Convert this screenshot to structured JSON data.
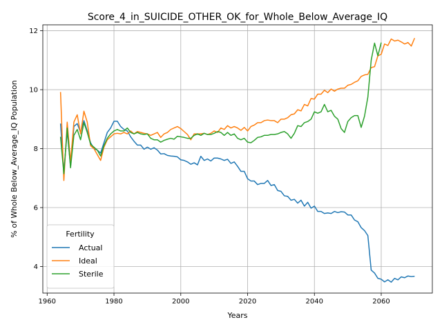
{
  "chart_data": {
    "type": "line",
    "title": "Score_4_in_SUICIDE_OTHER_OK_for_Whole_Below_Average_IQ",
    "xlabel": "Years",
    "ylabel": "% of Whole Below_Average_IQ Population",
    "xlim": [
      1958.7,
      2075.3
    ],
    "ylim": [
      3.1,
      12.2
    ],
    "xticks": [
      1960,
      1980,
      2000,
      2020,
      2040,
      2060
    ],
    "yticks": [
      4,
      6,
      8,
      10,
      12
    ],
    "grid": true,
    "legend": {
      "title": "Fertility",
      "placement": "lower-left"
    },
    "series": [
      {
        "name": "Actual",
        "color": "#1f77b4",
        "points": [
          [
            1964,
            8.85
          ],
          [
            1965,
            7.2
          ],
          [
            1966,
            8.6
          ],
          [
            1967,
            7.4
          ],
          [
            1968,
            8.75
          ],
          [
            1969,
            8.85
          ],
          [
            1970,
            8.55
          ],
          [
            1971,
            8.95
          ],
          [
            1972,
            8.6
          ],
          [
            1973,
            8.2
          ],
          [
            1974,
            8.0
          ],
          [
            1975,
            7.95
          ],
          [
            1976,
            7.85
          ],
          [
            1977,
            8.2
          ],
          [
            1978,
            8.55
          ],
          [
            1979,
            8.7
          ],
          [
            1980,
            8.93
          ],
          [
            1981,
            8.93
          ],
          [
            1982,
            8.75
          ],
          [
            1983,
            8.65
          ],
          [
            1984,
            8.6
          ],
          [
            1985,
            8.4
          ],
          [
            1986,
            8.25
          ],
          [
            1987,
            8.12
          ],
          [
            1988,
            8.12
          ],
          [
            1989,
            7.98
          ],
          [
            1990,
            8.05
          ],
          [
            1991,
            7.98
          ],
          [
            1992,
            8.03
          ],
          [
            1993,
            7.95
          ],
          [
            1994,
            7.82
          ],
          [
            1995,
            7.83
          ],
          [
            1996,
            7.77
          ],
          [
            1997,
            7.75
          ],
          [
            1998,
            7.74
          ],
          [
            1999,
            7.72
          ],
          [
            2000,
            7.62
          ],
          [
            2001,
            7.6
          ],
          [
            2002,
            7.55
          ],
          [
            2003,
            7.47
          ],
          [
            2004,
            7.52
          ],
          [
            2005,
            7.45
          ],
          [
            2006,
            7.74
          ],
          [
            2007,
            7.6
          ],
          [
            2008,
            7.65
          ],
          [
            2009,
            7.58
          ],
          [
            2010,
            7.68
          ],
          [
            2011,
            7.68
          ],
          [
            2012,
            7.65
          ],
          [
            2013,
            7.6
          ],
          [
            2014,
            7.64
          ],
          [
            2015,
            7.5
          ],
          [
            2016,
            7.55
          ],
          [
            2017,
            7.4
          ],
          [
            2018,
            7.23
          ],
          [
            2019,
            7.23
          ],
          [
            2020,
            6.98
          ],
          [
            2021,
            6.9
          ],
          [
            2022,
            6.9
          ],
          [
            2023,
            6.78
          ],
          [
            2024,
            6.82
          ],
          [
            2025,
            6.82
          ],
          [
            2026,
            6.92
          ],
          [
            2027,
            6.75
          ],
          [
            2028,
            6.78
          ],
          [
            2029,
            6.58
          ],
          [
            2030,
            6.55
          ],
          [
            2031,
            6.4
          ],
          [
            2032,
            6.38
          ],
          [
            2033,
            6.25
          ],
          [
            2034,
            6.28
          ],
          [
            2035,
            6.15
          ],
          [
            2036,
            6.25
          ],
          [
            2037,
            6.05
          ],
          [
            2038,
            6.18
          ],
          [
            2039,
            5.98
          ],
          [
            2040,
            6.05
          ],
          [
            2041,
            5.87
          ],
          [
            2042,
            5.87
          ],
          [
            2043,
            5.8
          ],
          [
            2044,
            5.82
          ],
          [
            2045,
            5.8
          ],
          [
            2046,
            5.87
          ],
          [
            2047,
            5.83
          ],
          [
            2048,
            5.86
          ],
          [
            2049,
            5.85
          ],
          [
            2050,
            5.75
          ],
          [
            2051,
            5.75
          ],
          [
            2052,
            5.58
          ],
          [
            2053,
            5.52
          ],
          [
            2054,
            5.32
          ],
          [
            2055,
            5.22
          ],
          [
            2056,
            5.05
          ],
          [
            2057,
            3.88
          ],
          [
            2058,
            3.78
          ],
          [
            2059,
            3.6
          ],
          [
            2060,
            3.57
          ],
          [
            2061,
            3.48
          ],
          [
            2062,
            3.55
          ],
          [
            2063,
            3.47
          ],
          [
            2064,
            3.6
          ],
          [
            2065,
            3.55
          ],
          [
            2066,
            3.65
          ],
          [
            2067,
            3.62
          ],
          [
            2068,
            3.68
          ],
          [
            2069,
            3.66
          ],
          [
            2070,
            3.67
          ]
        ]
      },
      {
        "name": "Ideal",
        "color": "#ff7f0e",
        "points": [
          [
            1964,
            9.92
          ],
          [
            1965,
            6.92
          ],
          [
            1966,
            8.9
          ],
          [
            1967,
            7.55
          ],
          [
            1968,
            8.9
          ],
          [
            1969,
            9.15
          ],
          [
            1970,
            8.5
          ],
          [
            1971,
            9.27
          ],
          [
            1972,
            8.9
          ],
          [
            1973,
            8.1
          ],
          [
            1974,
            8.0
          ],
          [
            1975,
            7.8
          ],
          [
            1976,
            7.6
          ],
          [
            1977,
            8.05
          ],
          [
            1978,
            8.3
          ],
          [
            1979,
            8.4
          ],
          [
            1980,
            8.5
          ],
          [
            1981,
            8.52
          ],
          [
            1982,
            8.5
          ],
          [
            1983,
            8.55
          ],
          [
            1984,
            8.5
          ],
          [
            1985,
            8.6
          ],
          [
            1986,
            8.5
          ],
          [
            1987,
            8.58
          ],
          [
            1988,
            8.55
          ],
          [
            1989,
            8.52
          ],
          [
            1990,
            8.5
          ],
          [
            1991,
            8.45
          ],
          [
            1992,
            8.5
          ],
          [
            1993,
            8.55
          ],
          [
            1994,
            8.38
          ],
          [
            1995,
            8.5
          ],
          [
            1996,
            8.55
          ],
          [
            1997,
            8.65
          ],
          [
            1998,
            8.7
          ],
          [
            1999,
            8.75
          ],
          [
            2000,
            8.68
          ],
          [
            2001,
            8.58
          ],
          [
            2002,
            8.48
          ],
          [
            2003,
            8.3
          ],
          [
            2004,
            8.5
          ],
          [
            2005,
            8.5
          ],
          [
            2006,
            8.5
          ],
          [
            2007,
            8.52
          ],
          [
            2008,
            8.48
          ],
          [
            2009,
            8.52
          ],
          [
            2010,
            8.6
          ],
          [
            2011,
            8.55
          ],
          [
            2012,
            8.7
          ],
          [
            2013,
            8.65
          ],
          [
            2014,
            8.78
          ],
          [
            2015,
            8.7
          ],
          [
            2016,
            8.75
          ],
          [
            2017,
            8.7
          ],
          [
            2018,
            8.62
          ],
          [
            2019,
            8.72
          ],
          [
            2020,
            8.6
          ],
          [
            2021,
            8.75
          ],
          [
            2022,
            8.8
          ],
          [
            2023,
            8.88
          ],
          [
            2024,
            8.88
          ],
          [
            2025,
            8.95
          ],
          [
            2026,
            8.97
          ],
          [
            2027,
            8.95
          ],
          [
            2028,
            8.95
          ],
          [
            2029,
            8.88
          ],
          [
            2030,
            9.0
          ],
          [
            2031,
            9.0
          ],
          [
            2032,
            9.05
          ],
          [
            2033,
            9.15
          ],
          [
            2034,
            9.18
          ],
          [
            2035,
            9.32
          ],
          [
            2036,
            9.28
          ],
          [
            2037,
            9.5
          ],
          [
            2038,
            9.45
          ],
          [
            2039,
            9.7
          ],
          [
            2040,
            9.68
          ],
          [
            2041,
            9.85
          ],
          [
            2042,
            9.85
          ],
          [
            2043,
            9.98
          ],
          [
            2044,
            9.9
          ],
          [
            2045,
            10.02
          ],
          [
            2046,
            9.95
          ],
          [
            2047,
            10.02
          ],
          [
            2048,
            10.05
          ],
          [
            2049,
            10.05
          ],
          [
            2050,
            10.15
          ],
          [
            2051,
            10.18
          ],
          [
            2052,
            10.25
          ],
          [
            2053,
            10.3
          ],
          [
            2054,
            10.45
          ],
          [
            2055,
            10.5
          ],
          [
            2056,
            10.52
          ],
          [
            2057,
            10.75
          ],
          [
            2058,
            10.78
          ],
          [
            2059,
            11.15
          ],
          [
            2060,
            11.2
          ],
          [
            2061,
            11.55
          ],
          [
            2062,
            11.5
          ],
          [
            2063,
            11.72
          ],
          [
            2064,
            11.65
          ],
          [
            2065,
            11.68
          ],
          [
            2066,
            11.62
          ],
          [
            2067,
            11.55
          ],
          [
            2068,
            11.6
          ],
          [
            2069,
            11.48
          ],
          [
            2070,
            11.75
          ]
        ]
      },
      {
        "name": "Sterile",
        "color": "#2ca02c",
        "points": [
          [
            1964,
            8.4
          ],
          [
            1965,
            7.15
          ],
          [
            1966,
            8.7
          ],
          [
            1967,
            7.35
          ],
          [
            1968,
            8.45
          ],
          [
            1969,
            8.65
          ],
          [
            1970,
            8.3
          ],
          [
            1971,
            8.88
          ],
          [
            1972,
            8.55
          ],
          [
            1973,
            8.15
          ],
          [
            1974,
            8.05
          ],
          [
            1975,
            7.95
          ],
          [
            1976,
            7.75
          ],
          [
            1977,
            8.1
          ],
          [
            1978,
            8.35
          ],
          [
            1979,
            8.5
          ],
          [
            1980,
            8.6
          ],
          [
            1981,
            8.65
          ],
          [
            1982,
            8.6
          ],
          [
            1983,
            8.6
          ],
          [
            1984,
            8.7
          ],
          [
            1985,
            8.55
          ],
          [
            1986,
            8.5
          ],
          [
            1987,
            8.55
          ],
          [
            1988,
            8.5
          ],
          [
            1989,
            8.48
          ],
          [
            1990,
            8.5
          ],
          [
            1991,
            8.35
          ],
          [
            1992,
            8.3
          ],
          [
            1993,
            8.3
          ],
          [
            1994,
            8.22
          ],
          [
            1995,
            8.28
          ],
          [
            1996,
            8.32
          ],
          [
            1997,
            8.35
          ],
          [
            1998,
            8.32
          ],
          [
            1999,
            8.42
          ],
          [
            2000,
            8.4
          ],
          [
            2001,
            8.38
          ],
          [
            2002,
            8.35
          ],
          [
            2003,
            8.35
          ],
          [
            2004,
            8.45
          ],
          [
            2005,
            8.5
          ],
          [
            2006,
            8.45
          ],
          [
            2007,
            8.52
          ],
          [
            2008,
            8.48
          ],
          [
            2009,
            8.48
          ],
          [
            2010,
            8.52
          ],
          [
            2011,
            8.58
          ],
          [
            2012,
            8.55
          ],
          [
            2013,
            8.45
          ],
          [
            2014,
            8.55
          ],
          [
            2015,
            8.45
          ],
          [
            2016,
            8.5
          ],
          [
            2017,
            8.35
          ],
          [
            2018,
            8.3
          ],
          [
            2019,
            8.35
          ],
          [
            2020,
            8.22
          ],
          [
            2021,
            8.2
          ],
          [
            2022,
            8.28
          ],
          [
            2023,
            8.38
          ],
          [
            2024,
            8.4
          ],
          [
            2025,
            8.45
          ],
          [
            2026,
            8.45
          ],
          [
            2027,
            8.48
          ],
          [
            2028,
            8.48
          ],
          [
            2029,
            8.5
          ],
          [
            2030,
            8.55
          ],
          [
            2031,
            8.58
          ],
          [
            2032,
            8.5
          ],
          [
            2033,
            8.35
          ],
          [
            2034,
            8.52
          ],
          [
            2035,
            8.78
          ],
          [
            2036,
            8.75
          ],
          [
            2037,
            8.88
          ],
          [
            2038,
            8.92
          ],
          [
            2039,
            9.0
          ],
          [
            2040,
            9.25
          ],
          [
            2041,
            9.2
          ],
          [
            2042,
            9.25
          ],
          [
            2043,
            9.5
          ],
          [
            2044,
            9.25
          ],
          [
            2045,
            9.3
          ],
          [
            2046,
            9.1
          ],
          [
            2047,
            9.0
          ],
          [
            2048,
            8.68
          ],
          [
            2049,
            8.55
          ],
          [
            2050,
            8.92
          ],
          [
            2051,
            9.05
          ],
          [
            2052,
            9.12
          ],
          [
            2053,
            9.12
          ],
          [
            2054,
            8.72
          ],
          [
            2055,
            9.1
          ],
          [
            2056,
            9.75
          ],
          [
            2057,
            11.0
          ],
          [
            2058,
            11.58
          ],
          [
            2059,
            11.15
          ],
          [
            2060,
            11.6
          ]
        ]
      }
    ]
  }
}
